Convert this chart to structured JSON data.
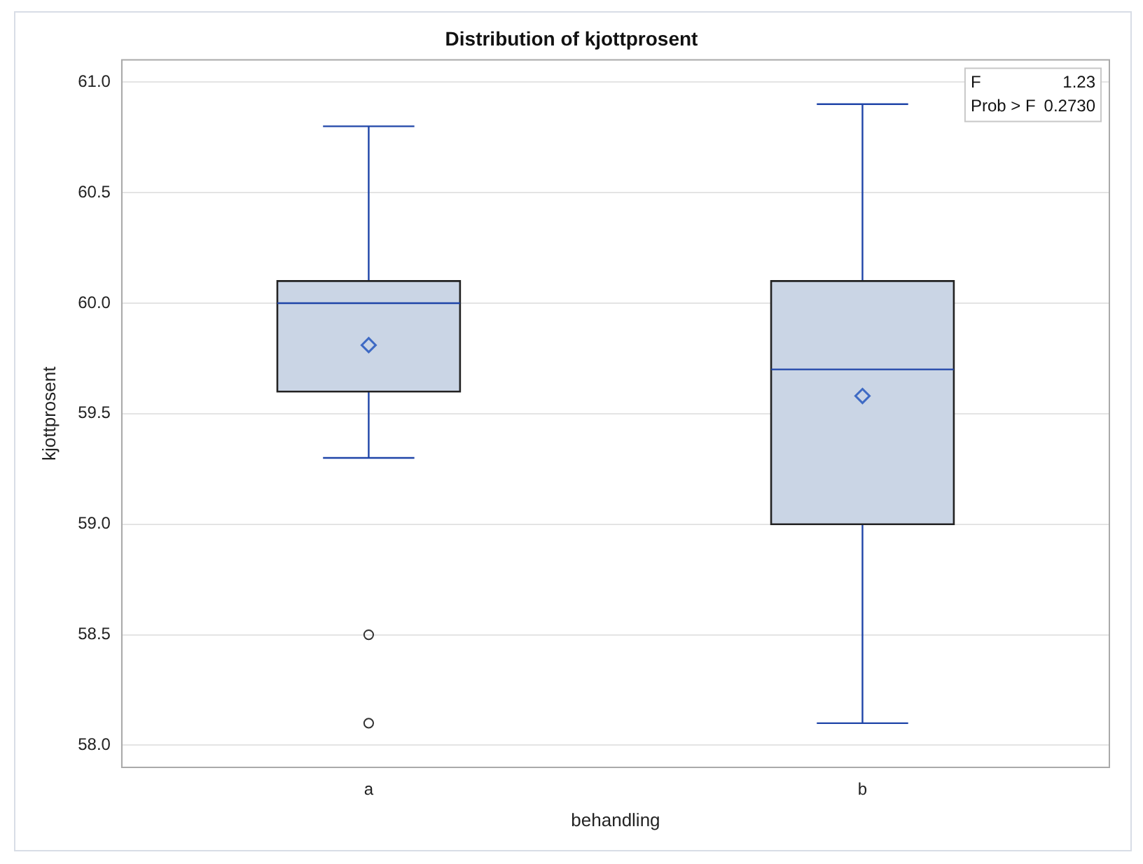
{
  "chart_data": {
    "type": "box",
    "title": "Distribution of kjottprosent",
    "xlabel": "behandling",
    "ylabel": "kjottprosent",
    "categories": [
      "a",
      "b"
    ],
    "color": "#cad5e5",
    "boxes": [
      {
        "low": 59.3,
        "q1": 59.6,
        "median": 60.0,
        "q3": 60.1,
        "high": 60.8,
        "mean": 59.81,
        "outliers": [
          58.5,
          58.1
        ]
      },
      {
        "low": 58.1,
        "q1": 59.0,
        "median": 59.7,
        "q3": 60.1,
        "high": 60.9,
        "mean": 59.58
      }
    ],
    "ylim": [
      57.9,
      61.1
    ],
    "yticks": [
      {
        "value": 58,
        "label": "58.0"
      },
      {
        "value": 58.5,
        "label": "58.5"
      },
      {
        "value": 59,
        "label": "59.0"
      },
      {
        "value": 59.5,
        "label": "59.5"
      },
      {
        "value": 60,
        "label": "60.0"
      },
      {
        "value": 60.5,
        "label": "60.5"
      },
      {
        "value": 61,
        "label": "61.0"
      }
    ],
    "grid": "y",
    "annotations": [
      "F 1.23",
      "Prob > F 0.2730"
    ]
  }
}
